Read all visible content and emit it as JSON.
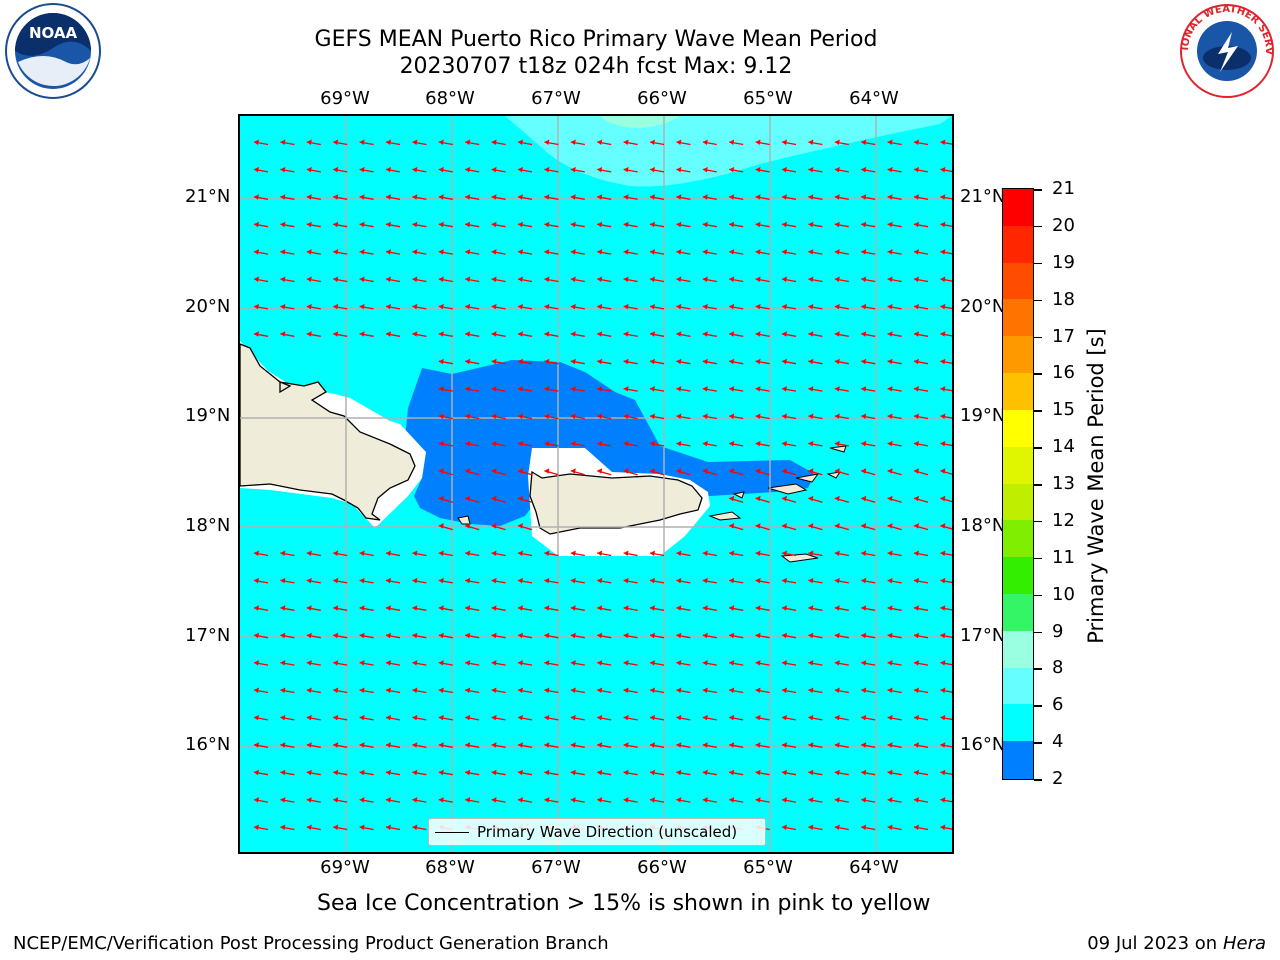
{
  "header": {
    "title_line1": "GEFS MEAN Puerto Rico Primary Wave Mean Period",
    "title_line2": "20230707 t18z 024h fcst   Max: 9.12"
  },
  "logos": {
    "left": "NOAA",
    "right": "NATIONAL WEATHER SERVICE"
  },
  "map": {
    "lon_labels": [
      "69°W",
      "68°W",
      "67°W",
      "66°W",
      "65°W",
      "64°W"
    ],
    "lat_labels": [
      "21°N",
      "20°N",
      "19°N",
      "18°N",
      "17°N",
      "16°N"
    ],
    "legend_label": "Primary Wave Direction (unscaled)",
    "colors": {
      "ocean_6_8": "#00ffff",
      "ocean_4_6": "#0080ff",
      "ocean_8_9": "#66ffff",
      "ocean_9_10": "#99ffe0",
      "land": "#efecd9",
      "arrow": "#ff0000",
      "grid": "#b0b0b0"
    }
  },
  "colorbar": {
    "label": "Primary Wave Mean Period [s]",
    "ticks": [
      "21",
      "20",
      "19",
      "18",
      "17",
      "16",
      "15",
      "14",
      "13",
      "12",
      "11",
      "10",
      "9",
      "8",
      "6",
      "4",
      "2"
    ],
    "colors": [
      "#ff0000",
      "#ff2600",
      "#ff4d00",
      "#ff7300",
      "#ff9900",
      "#ffc000",
      "#ffff00",
      "#e0f500",
      "#bfee00",
      "#80ee00",
      "#33ee00",
      "#33f566",
      "#99ffe0",
      "#66ffff",
      "#00ffff",
      "#0080ff",
      "#0000ff"
    ]
  },
  "bottom_note": "Sea Ice Concentration > 15% is shown in pink to yellow",
  "footer": {
    "left": "NCEP/EMC/Verification Post Processing Product Generation Branch",
    "right_prefix": "09 Jul 2023 on ",
    "right_machine": "Hera"
  }
}
